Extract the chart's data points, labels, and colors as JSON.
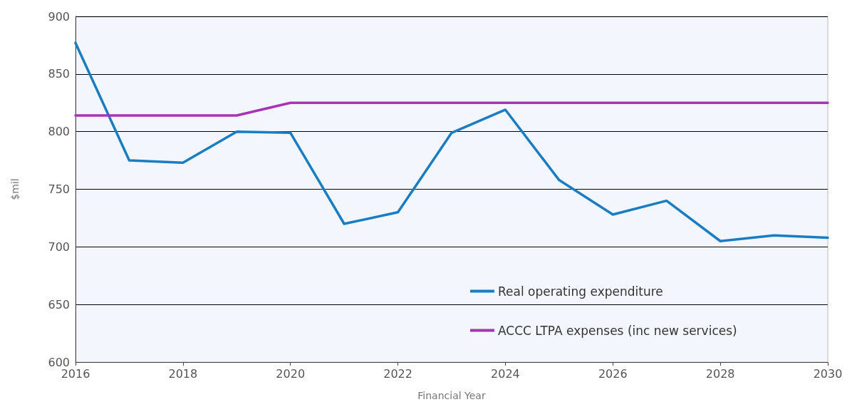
{
  "chart_data": {
    "type": "line",
    "xlabel": "Financial Year",
    "ylabel": "$mil",
    "x": [
      2016,
      2017,
      2018,
      2019,
      2020,
      2021,
      2022,
      2023,
      2024,
      2025,
      2026,
      2027,
      2028,
      2029,
      2030
    ],
    "series": [
      {
        "name": "Real operating expenditure",
        "color": "#1a7cc1",
        "values": [
          877,
          775,
          773,
          800,
          799,
          720,
          730,
          799,
          819,
          758,
          728,
          740,
          705,
          710,
          708
        ]
      },
      {
        "name": "ACCC LTPA expenses (inc new services)",
        "color": "#a933b5",
        "values": [
          814,
          814,
          814,
          814,
          825,
          825,
          825,
          825,
          825,
          825,
          825,
          825,
          825,
          825,
          825
        ]
      }
    ],
    "xlim": [
      2016,
      2030
    ],
    "xticks": [
      2016,
      2018,
      2020,
      2022,
      2024,
      2026,
      2028,
      2030
    ],
    "ylim": [
      600,
      900
    ],
    "yticks": [
      600,
      650,
      700,
      750,
      800,
      850,
      900
    ],
    "grid": "y",
    "legend": "bottom right",
    "marker": "none",
    "line_style": "solid"
  }
}
